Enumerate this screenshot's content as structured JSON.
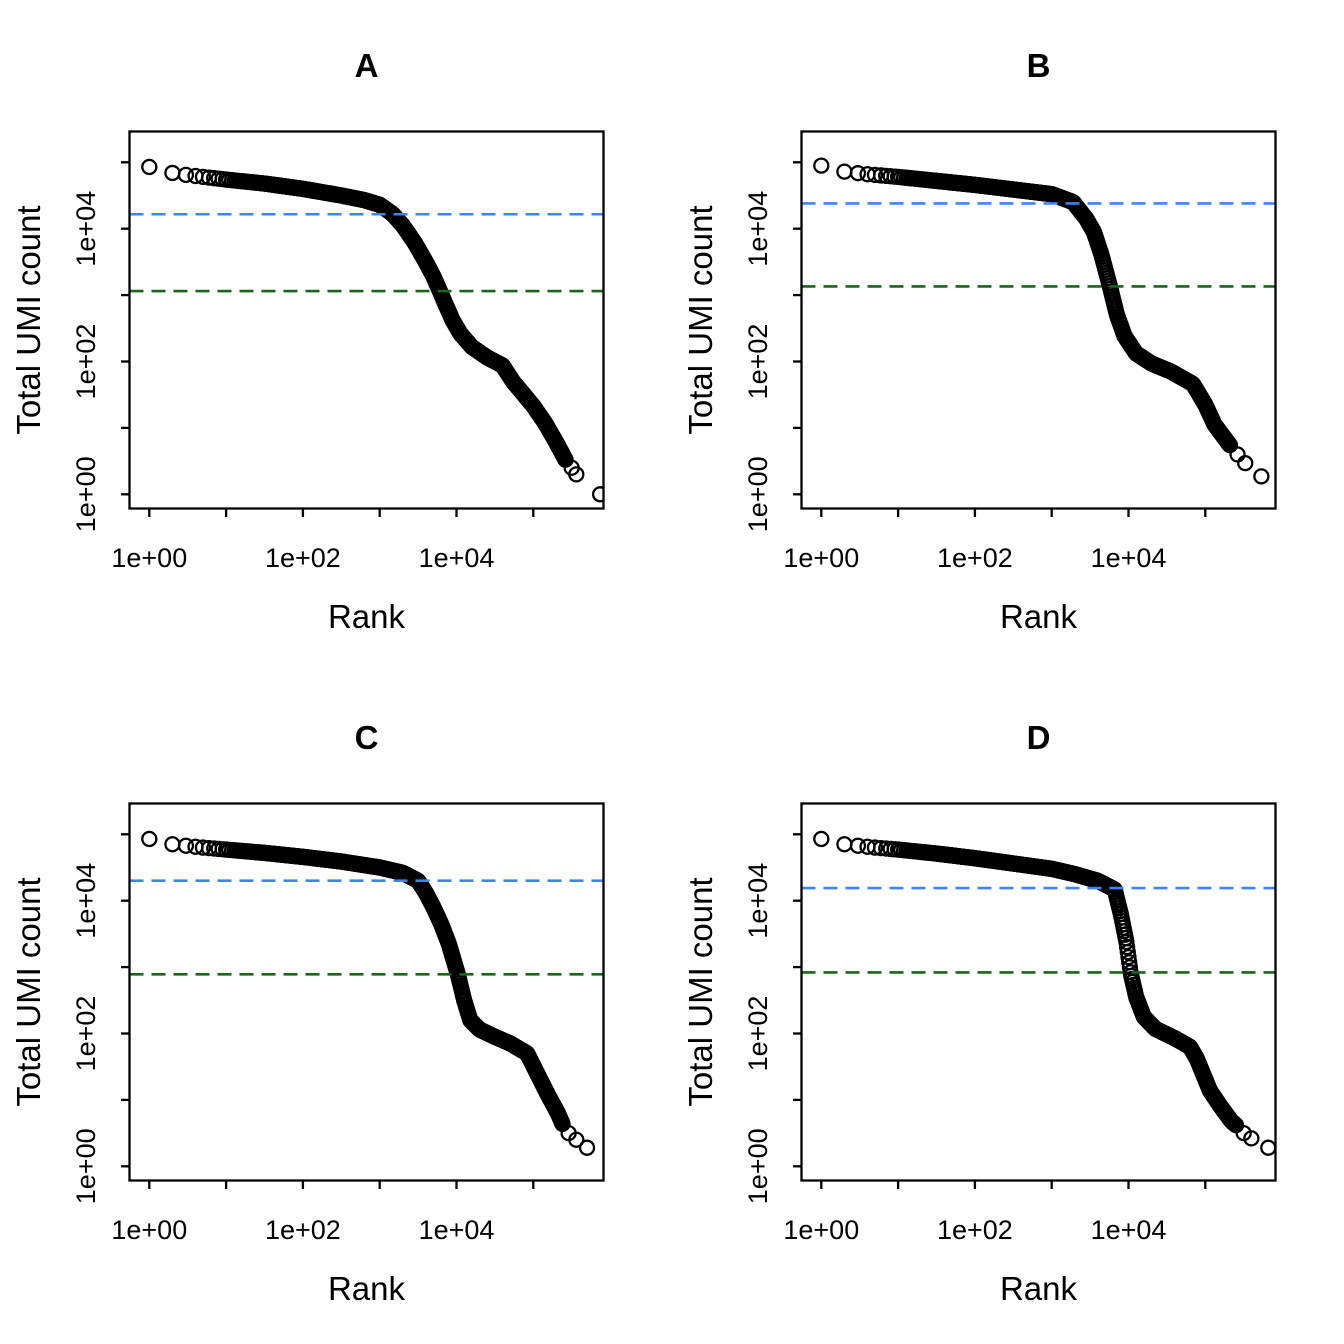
{
  "figure": {
    "background": "#ffffff",
    "layout": "2x2-panel-grid"
  },
  "style": {
    "axis_color": "#000000",
    "text_color": "#000000",
    "marker": {
      "shape": "open-circle",
      "radius": 7,
      "stroke_width": 2.3,
      "color": "#000000"
    },
    "threshold_dash": {
      "dash": 14,
      "gap": 8,
      "stroke_width": 2.6
    },
    "knee_color": "#3D85F2",
    "inflection_color": "#1A661A"
  },
  "axes": {
    "x_label": "Rank",
    "y_label": "Total UMI count",
    "x_scale": "log10",
    "y_scale": "log10",
    "x_ticks_log10": [
      0,
      1,
      2,
      3,
      4,
      5
    ],
    "y_ticks_log10": [
      0,
      1,
      2,
      3,
      4,
      5
    ],
    "x_labeled_ticks": [
      {
        "log10": 0,
        "label": "1e+00"
      },
      {
        "log10": 2,
        "label": "1e+02"
      },
      {
        "log10": 4,
        "label": "1e+04"
      }
    ],
    "y_labeled_ticks": [
      {
        "log10": 0,
        "label": "1e+00"
      },
      {
        "log10": 2,
        "label": "1e+02"
      },
      {
        "log10": 4,
        "label": "1e+04"
      }
    ],
    "x_range_log10": [
      0,
      5.92
    ],
    "y_range_log10": [
      0,
      5.46
    ],
    "grid_lines": false
  },
  "chart_data": [
    {
      "panel": "A",
      "type": "scatter",
      "title": "A",
      "xlabel": "Rank",
      "ylabel": "Total UMI count",
      "legend": "none",
      "knee_line_umi": 16500,
      "inflection_line_umi": 1150,
      "curve_log10_rank_vs_log10_count": [
        [
          0.0,
          4.93
        ],
        [
          0.3,
          4.84
        ],
        [
          0.48,
          4.81
        ],
        [
          0.7,
          4.78
        ],
        [
          1.0,
          4.74
        ],
        [
          1.5,
          4.68
        ],
        [
          2.0,
          4.6
        ],
        [
          2.5,
          4.5
        ],
        [
          2.8,
          4.43
        ],
        [
          3.0,
          4.36
        ],
        [
          3.17,
          4.22
        ],
        [
          3.3,
          4.05
        ],
        [
          3.45,
          3.8
        ],
        [
          3.6,
          3.5
        ],
        [
          3.7,
          3.28
        ],
        [
          3.78,
          3.07
        ],
        [
          3.85,
          2.88
        ],
        [
          3.95,
          2.62
        ],
        [
          4.05,
          2.42
        ],
        [
          4.2,
          2.22
        ],
        [
          4.4,
          2.06
        ],
        [
          4.6,
          1.94
        ],
        [
          4.74,
          1.69
        ],
        [
          4.85,
          1.54
        ],
        [
          5.0,
          1.33
        ],
        [
          5.15,
          1.08
        ],
        [
          5.3,
          0.78
        ],
        [
          5.42,
          0.52
        ]
      ],
      "tail_points_log10": [
        [
          5.5,
          0.4
        ],
        [
          5.56,
          0.3
        ],
        [
          5.87,
          0.0
        ]
      ]
    },
    {
      "panel": "B",
      "type": "scatter",
      "title": "B",
      "xlabel": "Rank",
      "ylabel": "Total UMI count",
      "legend": "none",
      "knee_line_umi": 24000,
      "inflection_line_umi": 1350,
      "curve_log10_rank_vs_log10_count": [
        [
          0.0,
          4.95
        ],
        [
          0.3,
          4.86
        ],
        [
          0.6,
          4.82
        ],
        [
          1.0,
          4.78
        ],
        [
          1.5,
          4.72
        ],
        [
          2.0,
          4.66
        ],
        [
          2.5,
          4.59
        ],
        [
          3.0,
          4.52
        ],
        [
          3.28,
          4.4
        ],
        [
          3.45,
          4.15
        ],
        [
          3.55,
          3.95
        ],
        [
          3.65,
          3.6
        ],
        [
          3.76,
          3.12
        ],
        [
          3.85,
          2.7
        ],
        [
          3.95,
          2.38
        ],
        [
          4.1,
          2.12
        ],
        [
          4.3,
          1.97
        ],
        [
          4.55,
          1.85
        ],
        [
          4.75,
          1.72
        ],
        [
          4.84,
          1.66
        ],
        [
          5.0,
          1.35
        ],
        [
          5.12,
          1.05
        ],
        [
          5.25,
          0.85
        ],
        [
          5.32,
          0.74
        ]
      ],
      "tail_points_log10": [
        [
          5.42,
          0.6
        ],
        [
          5.52,
          0.47
        ],
        [
          5.73,
          0.27
        ]
      ]
    },
    {
      "panel": "C",
      "type": "scatter",
      "title": "C",
      "xlabel": "Rank",
      "ylabel": "Total UMI count",
      "legend": "none",
      "knee_line_umi": 20000,
      "inflection_line_umi": 780,
      "curve_log10_rank_vs_log10_count": [
        [
          0.0,
          4.93
        ],
        [
          0.3,
          4.85
        ],
        [
          0.7,
          4.8
        ],
        [
          1.0,
          4.77
        ],
        [
          1.5,
          4.72
        ],
        [
          2.0,
          4.66
        ],
        [
          2.5,
          4.59
        ],
        [
          3.0,
          4.5
        ],
        [
          3.3,
          4.42
        ],
        [
          3.5,
          4.3
        ],
        [
          3.6,
          4.12
        ],
        [
          3.7,
          3.9
        ],
        [
          3.8,
          3.65
        ],
        [
          3.9,
          3.35
        ],
        [
          4.02,
          2.88
        ],
        [
          4.1,
          2.5
        ],
        [
          4.18,
          2.2
        ],
        [
          4.3,
          2.06
        ],
        [
          4.5,
          1.95
        ],
        [
          4.7,
          1.85
        ],
        [
          4.92,
          1.7
        ],
        [
          5.05,
          1.4
        ],
        [
          5.18,
          1.1
        ],
        [
          5.32,
          0.8
        ],
        [
          5.38,
          0.64
        ]
      ],
      "tail_points_log10": [
        [
          5.46,
          0.5
        ],
        [
          5.56,
          0.4
        ],
        [
          5.7,
          0.28
        ]
      ]
    },
    {
      "panel": "D",
      "type": "scatter",
      "title": "D",
      "xlabel": "Rank",
      "ylabel": "Total UMI count",
      "legend": "none",
      "knee_line_umi": 15500,
      "inflection_line_umi": 830,
      "curve_log10_rank_vs_log10_count": [
        [
          0.0,
          4.93
        ],
        [
          0.3,
          4.85
        ],
        [
          0.7,
          4.8
        ],
        [
          1.0,
          4.77
        ],
        [
          1.5,
          4.71
        ],
        [
          2.0,
          4.64
        ],
        [
          2.5,
          4.56
        ],
        [
          3.0,
          4.48
        ],
        [
          3.3,
          4.4
        ],
        [
          3.6,
          4.3
        ],
        [
          3.82,
          4.17
        ],
        [
          3.9,
          3.8
        ],
        [
          3.97,
          3.4
        ],
        [
          4.03,
          2.9
        ],
        [
          4.1,
          2.55
        ],
        [
          4.2,
          2.25
        ],
        [
          4.35,
          2.07
        ],
        [
          4.6,
          1.93
        ],
        [
          4.8,
          1.8
        ],
        [
          4.89,
          1.62
        ],
        [
          5.06,
          1.14
        ],
        [
          5.2,
          0.9
        ],
        [
          5.34,
          0.68
        ],
        [
          5.4,
          0.62
        ]
      ],
      "tail_points_log10": [
        [
          5.5,
          0.5
        ],
        [
          5.6,
          0.42
        ],
        [
          5.82,
          0.28
        ]
      ]
    }
  ]
}
